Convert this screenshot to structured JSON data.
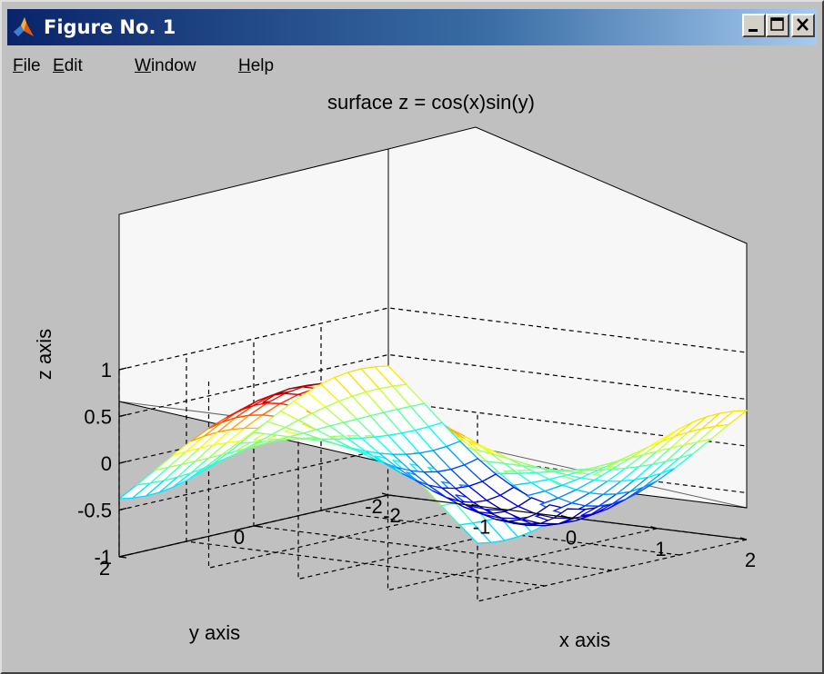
{
  "window": {
    "title": "Figure No. 1",
    "icon": "matlab-logo-icon",
    "controls": [
      "minimize-icon",
      "maximize-icon",
      "close-icon"
    ]
  },
  "menu": {
    "file": {
      "mnemonic": "F",
      "rest": "ile"
    },
    "edit": {
      "mnemonic": "E",
      "rest": "dit"
    },
    "window": {
      "mnemonic": "W",
      "rest": "indow"
    },
    "help": {
      "mnemonic": "H",
      "rest": "elp"
    }
  },
  "chart_data": {
    "type": "surface",
    "title": "surface z = cos(x)sin(y)",
    "function": "z = cos(x)sin(y)",
    "xlabel": "x axis",
    "ylabel": "y axis",
    "zlabel": "z axis",
    "xlim": [
      -2,
      2
    ],
    "ylim": [
      -2,
      2
    ],
    "zlim": [
      -1,
      1
    ],
    "x_ticks": [
      "-2",
      "-1",
      "0",
      "1",
      "2"
    ],
    "y_ticks": [
      "-2",
      "0",
      "2"
    ],
    "z_ticks": [
      "-1",
      "-0.5",
      "0",
      "0.5",
      "1"
    ],
    "grid": true,
    "colormap": "jet",
    "mesh_x": [
      -2,
      -1.8,
      -1.6,
      -1.4,
      -1.2,
      -1,
      -0.8,
      -0.6,
      -0.4,
      -0.2,
      0,
      0.2,
      0.4,
      0.6,
      0.8,
      1,
      1.2,
      1.4,
      1.6,
      1.8,
      2
    ],
    "mesh_y": [
      -2,
      -1.8,
      -1.6,
      -1.4,
      -1.2,
      -1,
      -0.8,
      -0.6,
      -0.4,
      -0.2,
      0,
      0.2,
      0.4,
      0.6,
      0.8,
      1,
      1.2,
      1.4,
      1.6,
      1.8,
      2
    ],
    "view": {
      "azimuth": -37.5,
      "elevation": 30
    }
  }
}
